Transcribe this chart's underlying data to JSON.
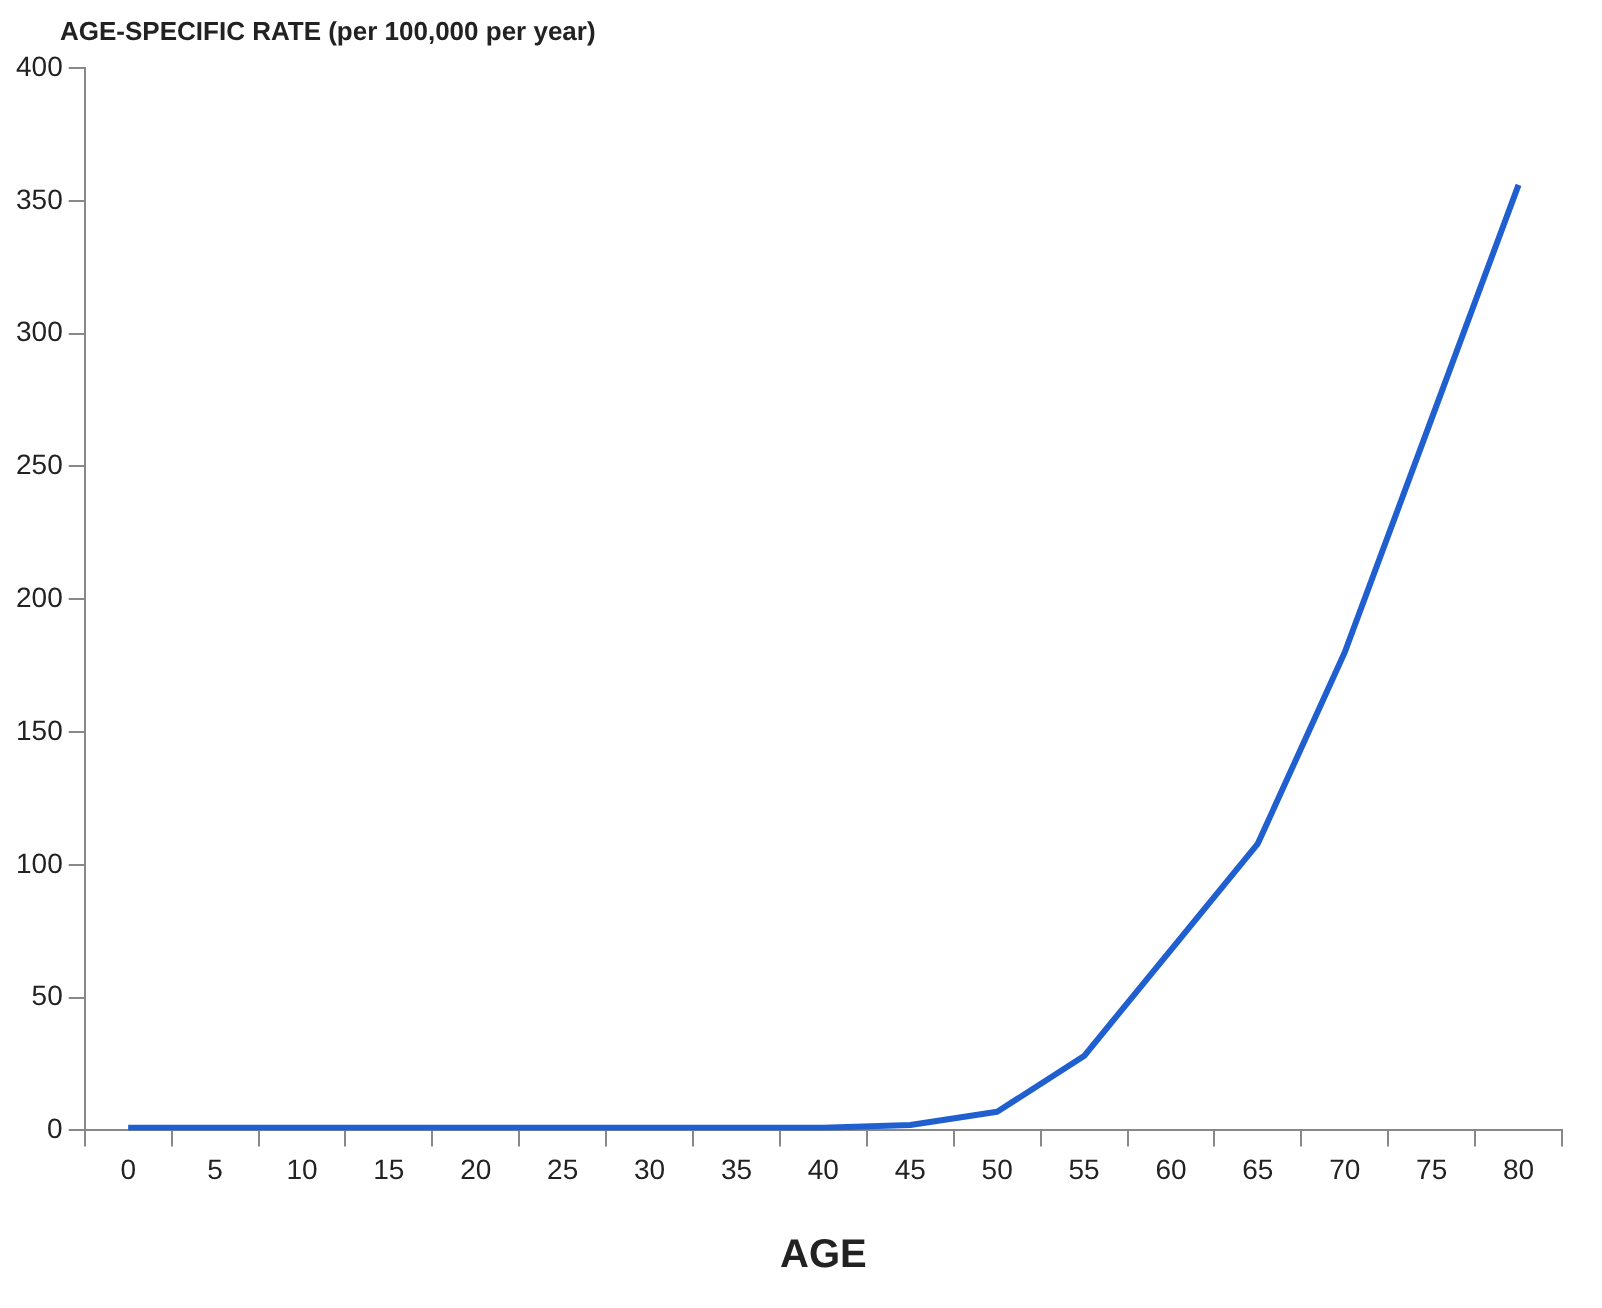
{
  "chart_data": {
    "type": "line",
    "ylabel": "AGE-SPECIFIC RATE (per 100,000 per year)",
    "xlabel": "AGE",
    "categories": [
      "0",
      "5",
      "10",
      "15",
      "20",
      "25",
      "30",
      "35",
      "40",
      "45",
      "50",
      "55",
      "60",
      "65",
      "70",
      "75",
      "80"
    ],
    "series": [
      {
        "color": "#1f5fcf",
        "values": [
          1,
          1,
          1,
          1,
          1,
          1,
          1,
          1,
          1,
          2,
          7,
          28,
          68,
          108,
          180,
          268,
          356
        ]
      }
    ],
    "ylim": [
      0,
      400
    ],
    "yticks": [
      0,
      50,
      100,
      150,
      200,
      250,
      300,
      350,
      400
    ],
    "grid": false,
    "legend": false,
    "marker": "none",
    "line_style": "solid"
  }
}
